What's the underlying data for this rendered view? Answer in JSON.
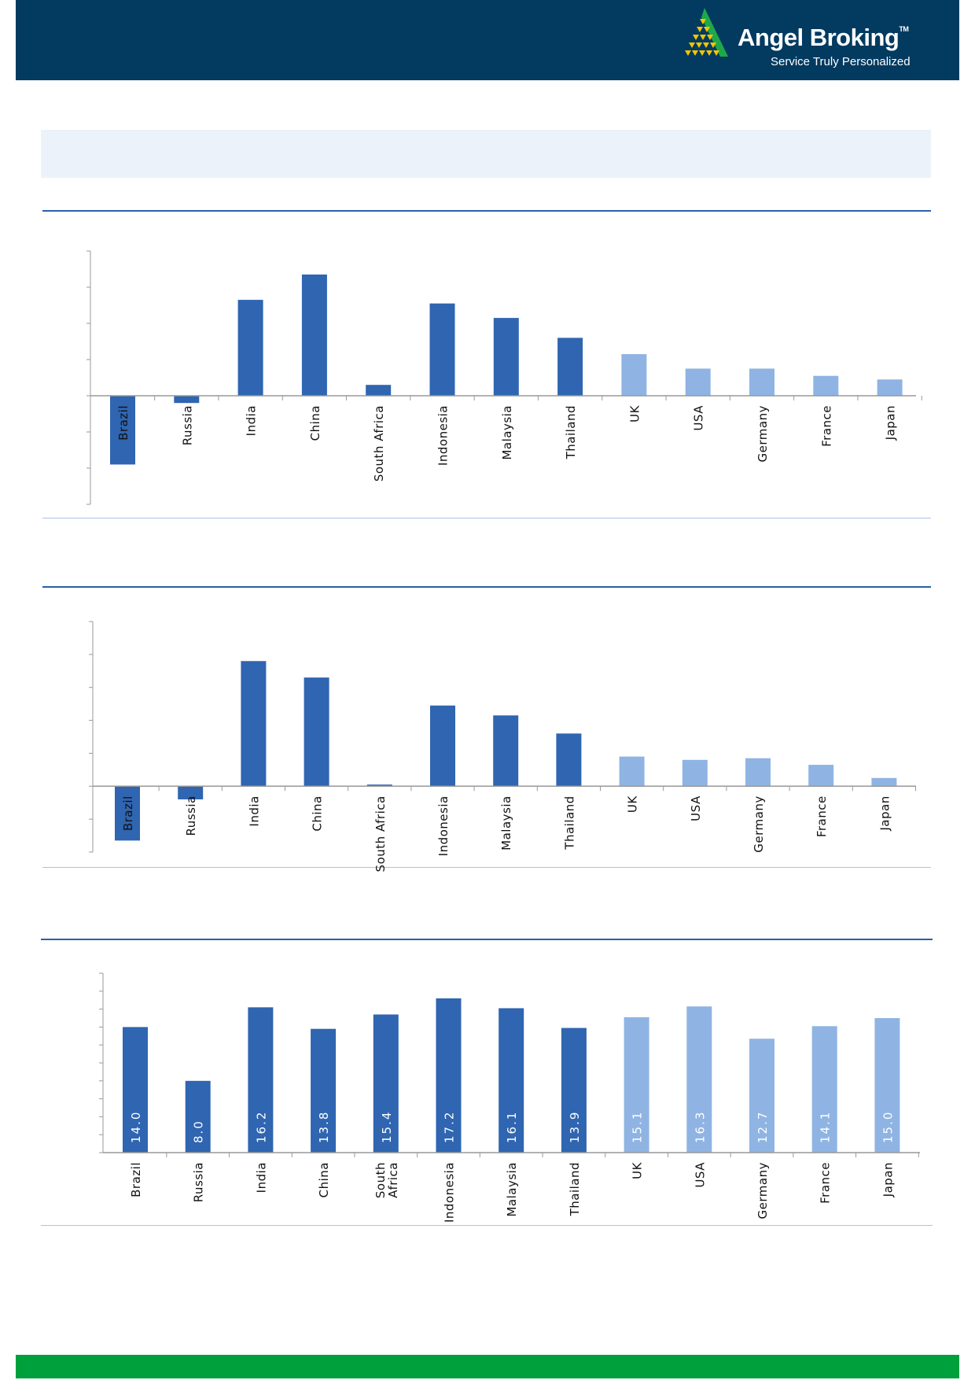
{
  "header": {
    "brand": "Angel Broking",
    "trademark": "TM",
    "tagline": "Service Truly Personalized",
    "background_color": "#023a60",
    "logo_icon": "angel-triangle-logo"
  },
  "colors": {
    "emerging": "#2f65b1",
    "developed": "#8fb4e3",
    "footer": "#00a03c",
    "banner": "#ebf2f9"
  },
  "chart_data": [
    {
      "type": "bar",
      "categories": [
        "Brazil",
        "Russia",
        "India",
        "China",
        "South Africa",
        "Indonesia",
        "Malaysia",
        "Thailand",
        "UK",
        "USA",
        "Germany",
        "France",
        "Japan"
      ],
      "values": [
        -1.9,
        -0.2,
        2.65,
        3.35,
        0.3,
        2.55,
        2.15,
        1.6,
        1.15,
        0.75,
        0.75,
        0.55,
        0.45
      ],
      "bar_colors": [
        "#2f65b1",
        "#2f65b1",
        "#2f65b1",
        "#2f65b1",
        "#2f65b1",
        "#2f65b1",
        "#2f65b1",
        "#2f65b1",
        "#8fb4e3",
        "#8fb4e3",
        "#8fb4e3",
        "#8fb4e3",
        "#8fb4e3"
      ],
      "ylim": [
        -3,
        4
      ],
      "y_tick_labels_shown": false,
      "grid": false
    },
    {
      "type": "bar",
      "categories": [
        "Brazil",
        "Russia",
        "India",
        "China",
        "South Africa",
        "Indonesia",
        "Malaysia",
        "Thailand",
        "UK",
        "USA",
        "Germany",
        "France",
        "Japan"
      ],
      "values": [
        -1.65,
        -0.4,
        3.8,
        3.3,
        0.05,
        2.45,
        2.15,
        1.6,
        0.9,
        0.8,
        0.85,
        0.65,
        0.25
      ],
      "bar_colors": [
        "#2f65b1",
        "#2f65b1",
        "#2f65b1",
        "#2f65b1",
        "#2f65b1",
        "#2f65b1",
        "#2f65b1",
        "#2f65b1",
        "#8fb4e3",
        "#8fb4e3",
        "#8fb4e3",
        "#8fb4e3",
        "#8fb4e3"
      ],
      "ylim": [
        -2,
        5
      ],
      "y_tick_labels_shown": false,
      "grid": false
    },
    {
      "type": "bar",
      "categories": [
        "Brazil",
        "Russia",
        "India",
        "China",
        "South Africa",
        "Indonesia",
        "Malaysia",
        "Thailand",
        "UK",
        "USA",
        "Germany",
        "France",
        "Japan"
      ],
      "values": [
        14.0,
        8.0,
        16.2,
        13.8,
        15.4,
        17.2,
        16.1,
        13.9,
        15.1,
        16.3,
        12.7,
        14.1,
        15.0
      ],
      "data_labels": [
        "14.0",
        "8.0",
        "16.2",
        "13.8",
        "15.4",
        "17.2",
        "16.1",
        "13.9",
        "15.1",
        "16.3",
        "12.7",
        "14.1",
        "15.0"
      ],
      "bar_colors": [
        "#2f65b1",
        "#2f65b1",
        "#2f65b1",
        "#2f65b1",
        "#2f65b1",
        "#2f65b1",
        "#2f65b1",
        "#2f65b1",
        "#8fb4e3",
        "#8fb4e3",
        "#8fb4e3",
        "#8fb4e3",
        "#8fb4e3"
      ],
      "ylim": [
        0,
        20
      ],
      "y_tick_labels_shown": false,
      "grid": false
    }
  ]
}
